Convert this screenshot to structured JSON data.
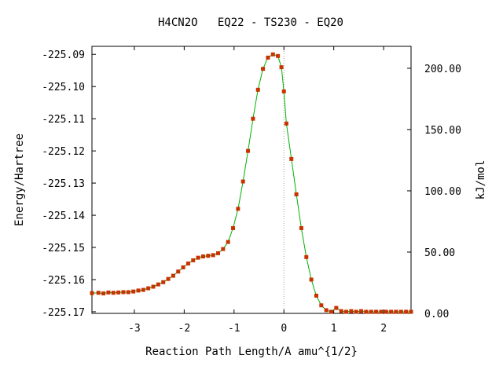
{
  "chart_data": {
    "type": "line",
    "title": "H4CN2O   EQ22 - TS230 - EQ20",
    "xlabel": "Reaction Path Length/A amu^{1/2}",
    "ylabel": "Energy/Hartree",
    "y2label": "kJ/mol",
    "xlim": [
      -3.85,
      2.55
    ],
    "ylim": [
      -225.1705,
      -225.0875
    ],
    "y2lim": [
      0.0,
      217.9
    ],
    "x_ticks": [
      -3,
      -2,
      -1,
      0,
      1,
      2
    ],
    "x_tick_labels": [
      "-3",
      "-2",
      "-1",
      "0",
      "1",
      "2"
    ],
    "y_ticks": [
      -225.09,
      -225.1,
      -225.11,
      -225.12,
      -225.13,
      -225.14,
      -225.15,
      -225.16,
      -225.17
    ],
    "y_tick_labels": [
      "-225.09",
      "-225.10",
      "-225.11",
      "-225.12",
      "-225.13",
      "-225.14",
      "-225.15",
      "-225.16",
      "-225.17"
    ],
    "y2_ticks": [
      200,
      150,
      100,
      50,
      0
    ],
    "y2_tick_labels": [
      "200.00",
      "150.00",
      "100.00",
      "50.00",
      "0.00"
    ],
    "ts_marker_x": 0.0,
    "grid": false,
    "colors": {
      "line": "#00b000",
      "marker": "#c83200",
      "ts_line": "#a0a0a0"
    },
    "series": [
      {
        "x": [
          -3.85,
          -3.72,
          -3.62,
          -3.52,
          -3.42,
          -3.32,
          -3.22,
          -3.12,
          -3.02,
          -2.92,
          -2.82,
          -2.72,
          -2.62,
          -2.52,
          -2.42,
          -2.32,
          -2.22,
          -2.12,
          -2.02,
          -1.92,
          -1.82,
          -1.72,
          -1.62,
          -1.52,
          -1.42,
          -1.32,
          -1.22,
          -1.12,
          -1.02,
          -0.92,
          -0.82,
          -0.72,
          -0.62,
          -0.52,
          -0.42,
          -0.32,
          -0.22,
          -0.12,
          -0.05,
          0.0,
          0.05,
          0.15,
          0.25,
          0.35,
          0.45,
          0.55,
          0.65,
          0.75,
          0.85,
          0.95,
          1.05,
          1.15,
          1.25,
          1.35,
          1.45,
          1.55,
          1.65,
          1.75,
          1.85,
          1.95,
          2.05,
          2.15,
          2.25,
          2.35,
          2.45,
          2.55
        ],
        "y": [
          -225.1642,
          -225.1641,
          -225.1643,
          -225.164,
          -225.1641,
          -225.164,
          -225.1639,
          -225.1639,
          -225.1637,
          -225.1634,
          -225.1632,
          -225.1627,
          -225.1622,
          -225.1615,
          -225.1608,
          -225.1598,
          -225.1588,
          -225.1575,
          -225.1562,
          -225.155,
          -225.154,
          -225.1532,
          -225.1528,
          -225.1526,
          -225.1524,
          -225.1518,
          -225.1505,
          -225.1483,
          -225.144,
          -225.138,
          -225.1295,
          -225.12,
          -225.11,
          -225.101,
          -225.0945,
          -225.091,
          -225.09,
          -225.0905,
          -225.094,
          -225.1015,
          -225.1115,
          -225.1225,
          -225.1335,
          -225.144,
          -225.153,
          -225.16,
          -225.165,
          -225.168,
          -225.1695,
          -225.17,
          -225.1688,
          -225.1698,
          -225.17,
          -225.1698,
          -225.17,
          -225.1698,
          -225.17,
          -225.17,
          -225.17,
          -225.17,
          -225.17,
          -225.17,
          -225.17,
          -225.17,
          -225.17,
          -225.17
        ]
      }
    ]
  }
}
